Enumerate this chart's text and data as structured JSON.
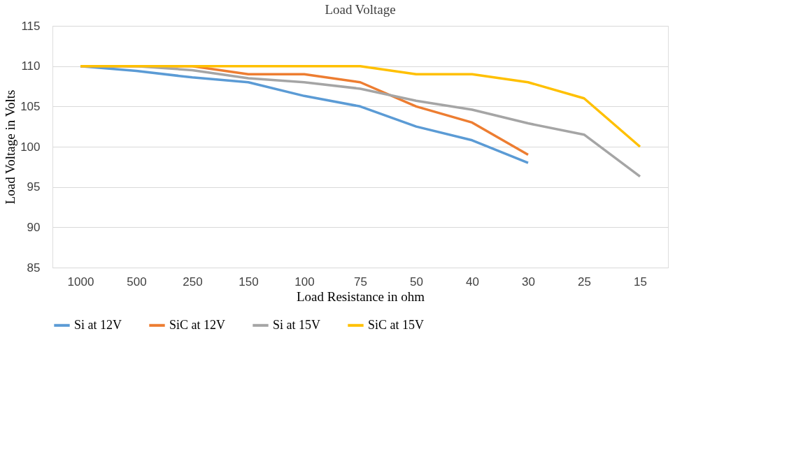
{
  "chart_data": {
    "type": "line",
    "title": "Load Voltage",
    "xlabel": "Load Resistance in ohm",
    "ylabel": "Load Voltage in Volts",
    "categories": [
      "1000",
      "500",
      "250",
      "150",
      "100",
      "75",
      "50",
      "40",
      "30",
      "25",
      "15"
    ],
    "series": [
      {
        "name": "Si at 12V",
        "color": "#5b9bd5",
        "values": [
          110,
          109.4,
          108.6,
          108.0,
          106.3,
          105.0,
          102.5,
          100.8,
          98.0,
          null,
          null
        ]
      },
      {
        "name": "SiC at 12V",
        "color": "#ed7d31",
        "values": [
          110,
          110,
          110,
          109,
          109,
          108,
          105,
          103,
          99,
          null,
          null
        ]
      },
      {
        "name": "Si at 15V",
        "color": "#a5a5a5",
        "values": [
          110,
          110,
          109.5,
          108.5,
          108.0,
          107.2,
          105.7,
          104.6,
          102.9,
          101.5,
          96.3
        ]
      },
      {
        "name": "SiC at 15V",
        "color": "#ffc000",
        "values": [
          110,
          110,
          110,
          110,
          110,
          110,
          109,
          109,
          108,
          106,
          100
        ]
      }
    ],
    "ylim": [
      85,
      115
    ],
    "yticks": [
      85,
      90,
      95,
      100,
      105,
      110,
      115
    ],
    "grid": "y",
    "legend": "bottom",
    "marker": "none",
    "line_style": "solid"
  }
}
